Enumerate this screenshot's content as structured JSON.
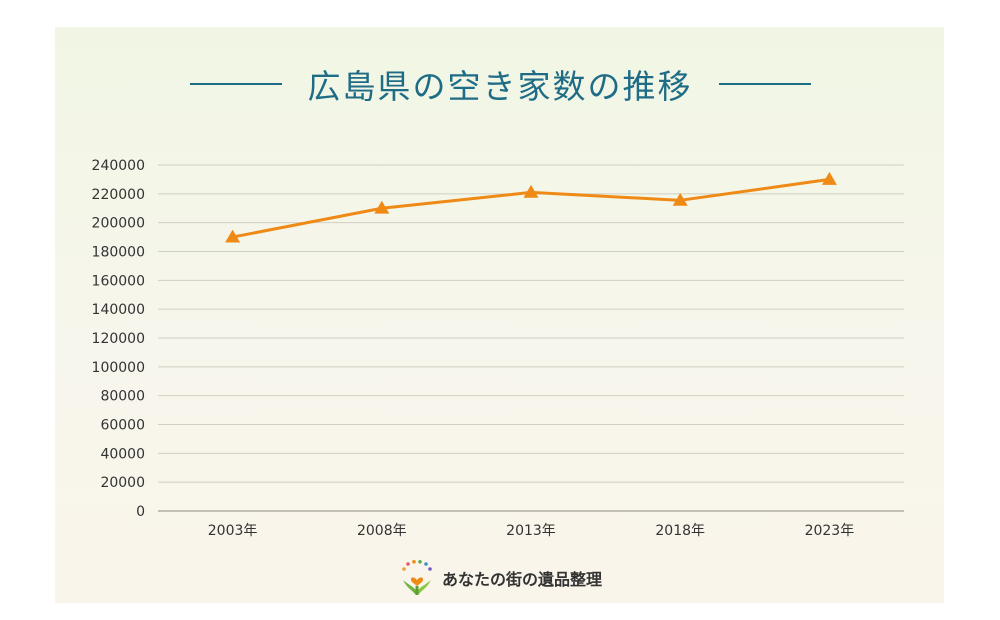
{
  "chart_data": {
    "type": "line",
    "title": "広島県の空き家数の推移",
    "categories": [
      "2003年",
      "2008年",
      "2013年",
      "2018年",
      "2023年"
    ],
    "series": [
      {
        "values": [
          190000,
          210000,
          221000,
          215500,
          230000
        ],
        "color": "#ef8a17",
        "marker": "triangle"
      }
    ],
    "ylim": [
      0,
      240000
    ],
    "yticks": [
      0,
      20000,
      40000,
      60000,
      80000,
      100000,
      120000,
      140000,
      160000,
      180000,
      200000,
      220000,
      240000
    ],
    "grid": true,
    "legend": "none"
  },
  "brand": {
    "name": "あなたの街の遺品整理",
    "logo_icon": "sprout-heart-logo"
  },
  "colors": {
    "title": "#1f6c86",
    "line": "#ef8a17",
    "grid": "#cfcfc4"
  }
}
